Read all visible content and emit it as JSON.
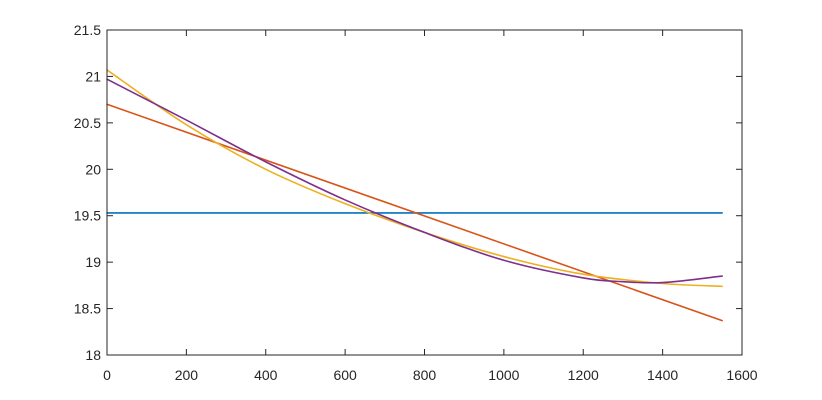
{
  "chart_data": {
    "type": "line",
    "title": "",
    "xlabel": "",
    "ylabel": "",
    "xlim": [
      0,
      1600
    ],
    "ylim": [
      18,
      21.5
    ],
    "xticks": [
      0,
      200,
      400,
      600,
      800,
      1000,
      1200,
      1400,
      1600
    ],
    "yticks": [
      18,
      18.5,
      19,
      19.5,
      20,
      20.5,
      21,
      21.5
    ],
    "grid": false,
    "legend": "none",
    "series": [
      {
        "color": "#0072bd",
        "x": [
          0,
          1550
        ],
        "y": [
          19.53,
          19.53
        ]
      },
      {
        "color": "#d95319",
        "x": [
          0,
          1550
        ],
        "y": [
          20.7,
          18.37
        ]
      },
      {
        "color": "#edb120",
        "x": [
          0,
          200,
          400,
          600,
          800,
          1000,
          1200,
          1400,
          1550
        ],
        "y": [
          21.07,
          20.48,
          20.0,
          19.63,
          19.32,
          19.06,
          18.87,
          18.77,
          18.74
        ]
      },
      {
        "color": "#7e2f8e",
        "x": [
          0,
          200,
          400,
          600,
          800,
          1000,
          1200,
          1300,
          1400,
          1550
        ],
        "y": [
          20.97,
          20.53,
          20.08,
          19.67,
          19.32,
          19.02,
          18.83,
          18.79,
          18.78,
          18.85
        ]
      }
    ]
  }
}
